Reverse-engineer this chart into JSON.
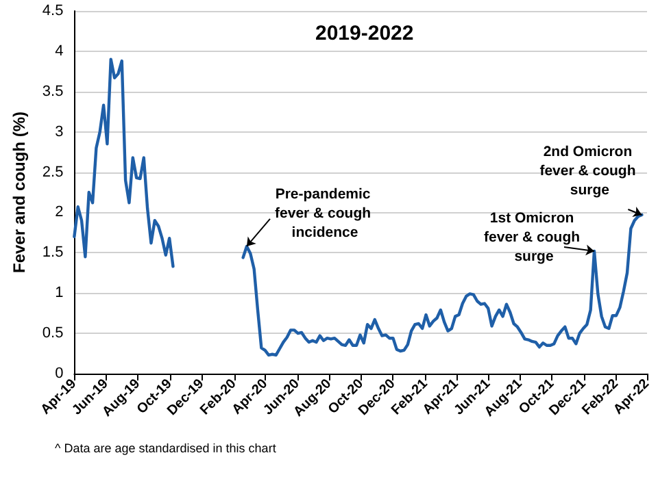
{
  "chart_data": {
    "type": "line",
    "title": "2019-2022",
    "ylabel": "Fever and cough (%)",
    "annotations": [
      {
        "text": "Pre-pandemic fever & cough incidence",
        "x": "2020-02-25",
        "y": 1.58
      },
      {
        "text": "1st Omicron fever & cough surge",
        "x": "2021-12-21",
        "y": 1.52
      },
      {
        "text": "2nd Omicron fever & cough surge",
        "x": "2022-03-22",
        "y": 1.97
      },
      "^ Data are age standardised in this chart"
    ],
    "series": [
      {
        "color": "#1f5fa8",
        "x": [
          "2019-04-01",
          "2019-04-08",
          "2019-04-15",
          "2019-04-22",
          "2019-04-29",
          "2019-05-06",
          "2019-05-13",
          "2019-05-20",
          "2019-05-27",
          "2019-06-03",
          "2019-06-10",
          "2019-06-17",
          "2019-06-24",
          "2019-07-01",
          "2019-07-08",
          "2019-07-15",
          "2019-07-22",
          "2019-07-29",
          "2019-08-05",
          "2019-08-12",
          "2019-08-19",
          "2019-08-26",
          "2019-09-02",
          "2019-09-09",
          "2019-09-16",
          "2019-09-23",
          "2019-09-30",
          "2019-10-07",
          "2020-01-01",
          "2020-02-18",
          "2020-02-25",
          "2020-03-03",
          "2020-03-10",
          "2020-03-17",
          "2020-03-24",
          "2020-03-31",
          "2020-04-07",
          "2020-04-14",
          "2020-04-21",
          "2020-04-28",
          "2020-05-05",
          "2020-05-12",
          "2020-05-19",
          "2020-05-26",
          "2020-06-02",
          "2020-06-09",
          "2020-06-16",
          "2020-06-23",
          "2020-06-30",
          "2020-07-07",
          "2020-07-14",
          "2020-07-21",
          "2020-07-28",
          "2020-08-04",
          "2020-08-11",
          "2020-08-18",
          "2020-08-25",
          "2020-09-01",
          "2020-09-08",
          "2020-09-15",
          "2020-09-22",
          "2020-09-29",
          "2020-10-06",
          "2020-10-13",
          "2020-10-20",
          "2020-10-27",
          "2020-11-03",
          "2020-11-10",
          "2020-11-17",
          "2020-11-24",
          "2020-12-01",
          "2020-12-08",
          "2020-12-15",
          "2020-12-22",
          "2020-12-29",
          "2021-01-05",
          "2021-01-12",
          "2021-01-19",
          "2021-01-26",
          "2021-02-02",
          "2021-02-09",
          "2021-02-16",
          "2021-02-23",
          "2021-03-02",
          "2021-03-09",
          "2021-03-16",
          "2021-03-23",
          "2021-03-30",
          "2021-04-06",
          "2021-04-13",
          "2021-04-20",
          "2021-04-27",
          "2021-05-04",
          "2021-05-11",
          "2021-05-18",
          "2021-05-25",
          "2021-06-01",
          "2021-06-08",
          "2021-06-15",
          "2021-06-22",
          "2021-06-29",
          "2021-07-06",
          "2021-07-13",
          "2021-07-20",
          "2021-07-27",
          "2021-08-03",
          "2021-08-10",
          "2021-08-17",
          "2021-08-24",
          "2021-08-31",
          "2021-09-07",
          "2021-09-14",
          "2021-09-21",
          "2021-09-28",
          "2021-10-05",
          "2021-10-12",
          "2021-10-19",
          "2021-10-26",
          "2021-11-02",
          "2021-11-09",
          "2021-11-16",
          "2021-11-23",
          "2021-11-30",
          "2021-12-07",
          "2021-12-14",
          "2021-12-21",
          "2021-12-28",
          "2022-01-04",
          "2022-01-11",
          "2022-01-18",
          "2022-01-25",
          "2022-02-01",
          "2022-02-08",
          "2022-02-15",
          "2022-02-22",
          "2022-03-01",
          "2022-03-08",
          "2022-03-15",
          "2022-03-22"
        ],
        "values": [
          1.7,
          2.07,
          1.9,
          1.45,
          2.25,
          2.12,
          2.8,
          3.0,
          3.33,
          2.85,
          3.9,
          3.67,
          3.72,
          3.88,
          2.4,
          2.12,
          2.68,
          2.43,
          2.42,
          2.68,
          2.05,
          1.62,
          1.9,
          1.83,
          1.68,
          1.47,
          1.68,
          1.33,
          null,
          1.44,
          1.58,
          1.49,
          1.3,
          0.79,
          0.32,
          0.29,
          0.23,
          0.24,
          0.23,
          0.31,
          0.39,
          0.45,
          0.54,
          0.54,
          0.5,
          0.51,
          0.44,
          0.39,
          0.41,
          0.39,
          0.47,
          0.41,
          0.44,
          0.43,
          0.44,
          0.4,
          0.36,
          0.35,
          0.42,
          0.35,
          0.35,
          0.48,
          0.38,
          0.61,
          0.56,
          0.67,
          0.56,
          0.47,
          0.48,
          0.44,
          0.44,
          0.3,
          0.28,
          0.29,
          0.36,
          0.53,
          0.61,
          0.62,
          0.56,
          0.73,
          0.59,
          0.65,
          0.69,
          0.79,
          0.64,
          0.53,
          0.56,
          0.71,
          0.73,
          0.87,
          0.96,
          0.99,
          0.98,
          0.9,
          0.86,
          0.87,
          0.81,
          0.59,
          0.71,
          0.79,
          0.71,
          0.86,
          0.76,
          0.62,
          0.58,
          0.51,
          0.43,
          0.42,
          0.4,
          0.39,
          0.33,
          0.38,
          0.35,
          0.35,
          0.37,
          0.47,
          0.53,
          0.58,
          0.44,
          0.44,
          0.37,
          0.5,
          0.56,
          0.61,
          0.79,
          1.52,
          0.99,
          0.71,
          0.58,
          0.56,
          0.72,
          0.72,
          0.82,
          1.02,
          1.25,
          1.8,
          1.9,
          1.95,
          1.97
        ]
      }
    ],
    "xlim": [
      "2019-04-01",
      "2022-04-01"
    ],
    "xticks": [
      {
        "value": "2019-04-01",
        "label": "Apr-19"
      },
      {
        "value": "2019-06-01",
        "label": "Jun-19"
      },
      {
        "value": "2019-08-01",
        "label": "Aug-19"
      },
      {
        "value": "2019-10-01",
        "label": "Oct-19"
      },
      {
        "value": "2019-12-01",
        "label": "Dec-19"
      },
      {
        "value": "2020-02-01",
        "label": "Feb-20"
      },
      {
        "value": "2020-04-01",
        "label": "Apr-20"
      },
      {
        "value": "2020-06-01",
        "label": "Jun-20"
      },
      {
        "value": "2020-08-01",
        "label": "Aug-20"
      },
      {
        "value": "2020-10-01",
        "label": "Oct-20"
      },
      {
        "value": "2020-12-01",
        "label": "Dec-20"
      },
      {
        "value": "2021-02-01",
        "label": "Feb-21"
      },
      {
        "value": "2021-04-01",
        "label": "Apr-21"
      },
      {
        "value": "2021-06-01",
        "label": "Jun-21"
      },
      {
        "value": "2021-08-01",
        "label": "Aug-21"
      },
      {
        "value": "2021-10-01",
        "label": "Oct-21"
      },
      {
        "value": "2021-12-01",
        "label": "Dec-21"
      },
      {
        "value": "2022-02-01",
        "label": "Feb-22"
      },
      {
        "value": "2022-04-01",
        "label": "Apr-22"
      }
    ],
    "ylim": [
      0,
      4.5
    ],
    "yticks": [
      0,
      0.5,
      1,
      1.5,
      2,
      2.5,
      3,
      3.5,
      4,
      4.5
    ],
    "grid": "y",
    "marker": "none",
    "line_style": "solid"
  }
}
